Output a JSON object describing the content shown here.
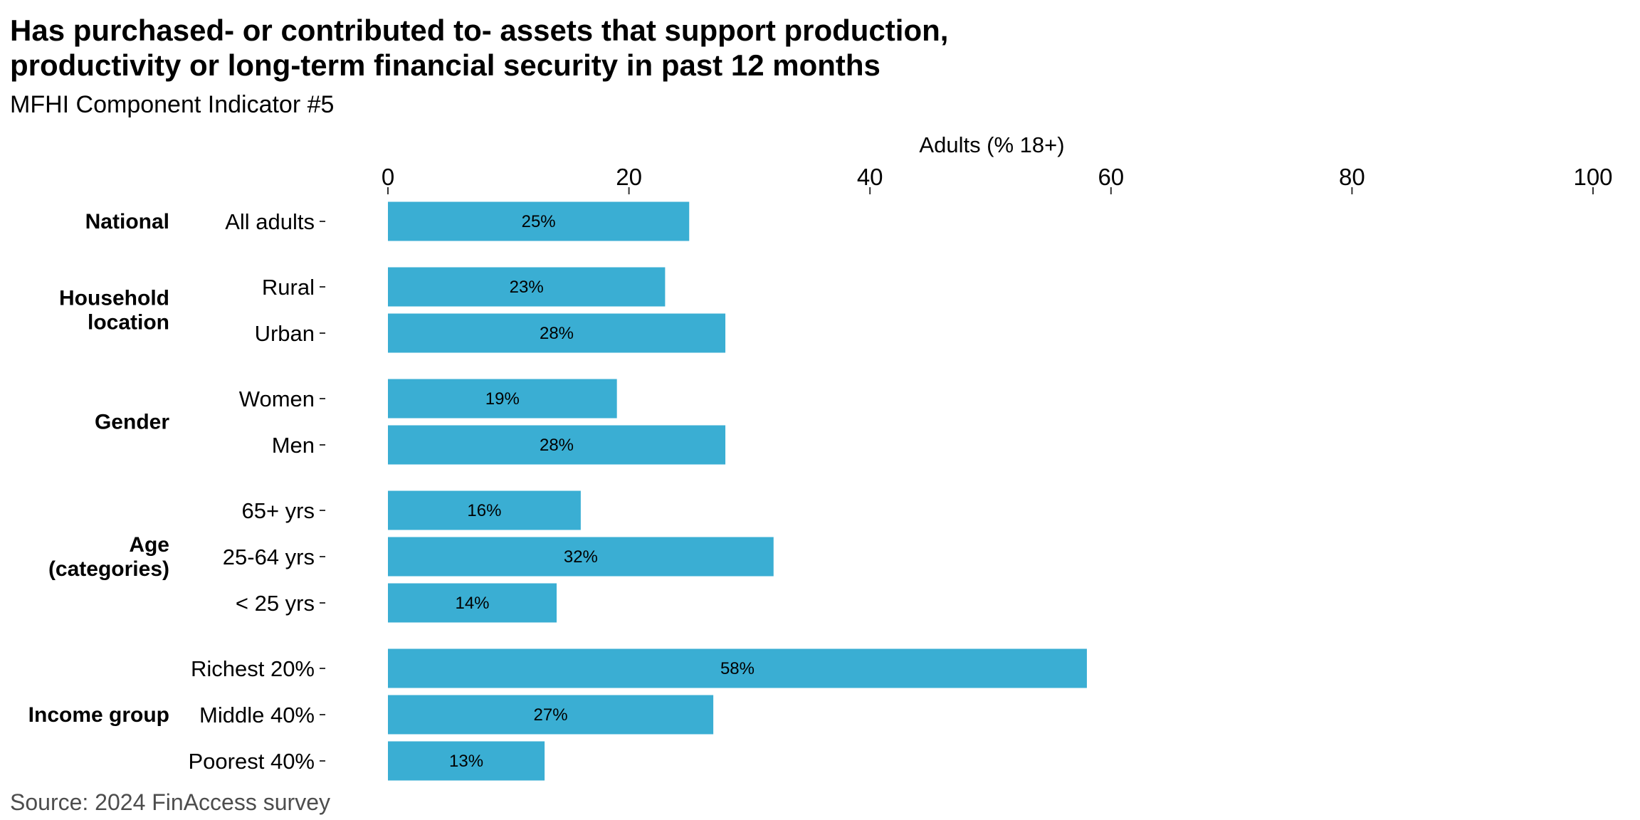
{
  "title_lines": [
    "Has purchased- or contributed to- assets that support production,",
    "productivity or long-term financial security in past 12 months"
  ],
  "subtitle": "MFHI Component Indicator #5",
  "source": "Source: 2024 FinAccess survey",
  "colors": {
    "bar": "#3aaed3",
    "text": "#000000",
    "source_text": "#4d4d4d"
  },
  "chart_data": {
    "type": "bar",
    "orientation": "horizontal",
    "xlabel": "Adults (% 18+)",
    "xlim": [
      0,
      100
    ],
    "xticks": [
      0,
      20,
      40,
      60,
      80,
      100
    ],
    "x_axis_position": "top",
    "grid": false,
    "legend": "none",
    "groups": [
      {
        "name": "National",
        "categories": [
          {
            "label": "All adults",
            "value": 25,
            "data_label": "25%"
          }
        ]
      },
      {
        "name": "Household location",
        "name_lines": [
          "Household",
          "location"
        ],
        "categories": [
          {
            "label": "Rural",
            "value": 23,
            "data_label": "23%"
          },
          {
            "label": "Urban",
            "value": 28,
            "data_label": "28%"
          }
        ]
      },
      {
        "name": "Gender",
        "categories": [
          {
            "label": "Women",
            "value": 19,
            "data_label": "19%"
          },
          {
            "label": "Men",
            "value": 28,
            "data_label": "28%"
          }
        ]
      },
      {
        "name": "Age (categories)",
        "name_lines": [
          "Age",
          "(categories)"
        ],
        "categories": [
          {
            "label": "65+ yrs",
            "value": 16,
            "data_label": "16%"
          },
          {
            "label": "25-64 yrs",
            "value": 32,
            "data_label": "32%"
          },
          {
            "label": "< 25 yrs",
            "value": 14,
            "data_label": "14%"
          }
        ]
      },
      {
        "name": "Income group",
        "categories": [
          {
            "label": "Richest 20%",
            "value": 58,
            "data_label": "58%"
          },
          {
            "label": "Middle 40%",
            "value": 27,
            "data_label": "27%"
          },
          {
            "label": "Poorest 40%",
            "value": 13,
            "data_label": "13%"
          }
        ]
      }
    ]
  }
}
